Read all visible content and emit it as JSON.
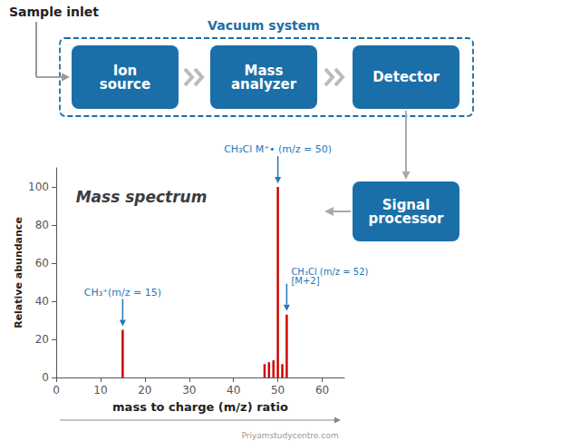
{
  "chart_data": {
    "type": "bar",
    "title": "Mass spectrum",
    "xlabel": "mass to charge (m/z) ratio",
    "ylabel": "Relative abundance",
    "x": [
      15,
      47,
      48,
      49,
      50,
      51,
      52
    ],
    "values": [
      25,
      7,
      8,
      9,
      100,
      7,
      33
    ],
    "color": "#cc0000",
    "xlim": [
      0,
      65
    ],
    "ylim": [
      0,
      110
    ],
    "xticks": [
      0,
      10,
      20,
      30,
      40,
      50,
      60
    ],
    "yticks": [
      0,
      20,
      40,
      60,
      80,
      100
    ],
    "grid": false,
    "annotations": [
      {
        "text": "CH₃⁺(m/z = 15)",
        "x": 15,
        "color": "#2277bb"
      },
      {
        "text": "CH₃Cl M⁺• (m/z = 50)",
        "x": 50,
        "color": "#2277bb"
      },
      {
        "text": "CH₃Cl (m/z = 52)\n[M+2]",
        "x": 52,
        "color": "#2277bb"
      },
      {
        "text": "Sample inlet"
      },
      {
        "text": "Vacuum system",
        "color": "#1a6fa8"
      },
      {
        "text": "Ion\nsource",
        "color": "#1a6fa8"
      },
      {
        "text": "Mass\nanalyzer",
        "color": "#1a6fa8"
      },
      {
        "text": "Detector",
        "color": "#1a6fa8"
      },
      {
        "text": "Signal\nprocessor",
        "color": "#1a6fa8"
      },
      {
        "text": "Priyamstudycentre.com"
      }
    ]
  }
}
